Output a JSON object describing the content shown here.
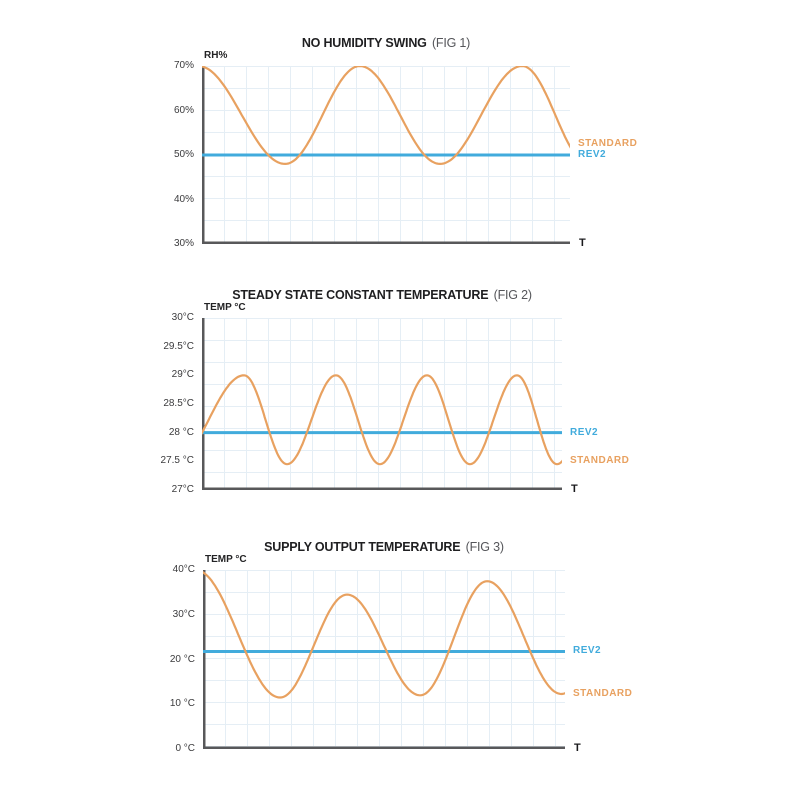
{
  "canvas": {
    "background": "#ffffff"
  },
  "colors": {
    "standard": "#E8A160",
    "rev2": "#41ABDC",
    "axis": "#58585A",
    "grid": "#E5EEF5",
    "tick_text": "#3B3B3D",
    "title_text": "#1F1F21",
    "fig_text": "#55565A"
  },
  "chart_data": [
    {
      "type": "line",
      "title": "NO HUMIDITY SWING",
      "subtitle": "(FIG 1)",
      "ylabel": "RH%",
      "xlabel": "T",
      "ylim": [
        30,
        70
      ],
      "grid": true,
      "legend_position": "right",
      "yticks": [
        {
          "value": 70,
          "label": "70%"
        },
        {
          "value": 60,
          "label": "60%"
        },
        {
          "value": 50,
          "label": "50%"
        },
        {
          "value": 40,
          "label": "40%"
        },
        {
          "value": 30,
          "label": "30%"
        }
      ],
      "series": [
        {
          "name": "STANDARD",
          "type": "wave",
          "color": "#E8A160",
          "label_value": 52.5,
          "extrema": [
            [
              -0.01,
              70
            ],
            [
              0.226,
              48
            ],
            [
              0.429,
              70
            ],
            [
              0.647,
              48
            ],
            [
              0.87,
              70
            ],
            [
              1.05,
              48
            ]
          ]
        },
        {
          "name": "REV2",
          "type": "constant",
          "color": "#41ABDC",
          "value": 50,
          "label_value": 50
        }
      ]
    },
    {
      "type": "line",
      "title": "STEADY STATE CONSTANT TEMPERATURE",
      "subtitle": "(FIG 2)",
      "ylabel": "TEMP °C",
      "xlabel": "T",
      "ylim": [
        27,
        30
      ],
      "grid": true,
      "legend_position": "right",
      "yticks": [
        {
          "value": 30,
          "label": "30°C"
        },
        {
          "value": 29.5,
          "label": "29.5°C"
        },
        {
          "value": 29,
          "label": "29°C"
        },
        {
          "value": 28.5,
          "label": "28.5°C"
        },
        {
          "value": 28,
          "label": "28 °C"
        },
        {
          "value": 27.5,
          "label": "27.5 °C"
        },
        {
          "value": 27,
          "label": "27°C"
        }
      ],
      "series": [
        {
          "name": "STANDARD",
          "type": "wave",
          "color": "#E8A160",
          "label_value": 27.5,
          "extrema": [
            [
              -0.08,
              27.45
            ],
            [
              0.117,
              29
            ],
            [
              0.236,
              27.45
            ],
            [
              0.372,
              29
            ],
            [
              0.494,
              27.45
            ],
            [
              0.625,
              29
            ],
            [
              0.744,
              27.45
            ],
            [
              0.875,
              29
            ],
            [
              0.986,
              27.45
            ],
            [
              1.11,
              29
            ]
          ]
        },
        {
          "name": "REV2",
          "type": "constant",
          "color": "#41ABDC",
          "value": 28,
          "label_value": 28
        }
      ]
    },
    {
      "type": "line",
      "title": "SUPPLY OUTPUT TEMPERATURE",
      "subtitle": "(FIG 3)",
      "ylabel": "TEMP °C",
      "xlabel": "T",
      "ylim": [
        0,
        40
      ],
      "grid": true,
      "legend_position": "right",
      "yticks": [
        {
          "value": 40,
          "label": "40°C"
        },
        {
          "value": 30,
          "label": "30°C"
        },
        {
          "value": 20,
          "label": "20 °C"
        },
        {
          "value": 10,
          "label": "10 °C"
        },
        {
          "value": 0,
          "label": "0 °C"
        }
      ],
      "series": [
        {
          "name": "STANDARD",
          "type": "wave",
          "color": "#E8A160",
          "label_value": 12.3,
          "extrema": [
            [
              -0.02,
              40
            ],
            [
              0.213,
              11.5
            ],
            [
              0.398,
              34.5
            ],
            [
              0.6,
              12
            ],
            [
              0.785,
              37.5
            ],
            [
              0.99,
              12.3
            ],
            [
              1.18,
              34
            ]
          ]
        },
        {
          "name": "REV2",
          "type": "constant",
          "color": "#41ABDC",
          "value": 21.8,
          "label_value": 21.8
        }
      ]
    }
  ]
}
